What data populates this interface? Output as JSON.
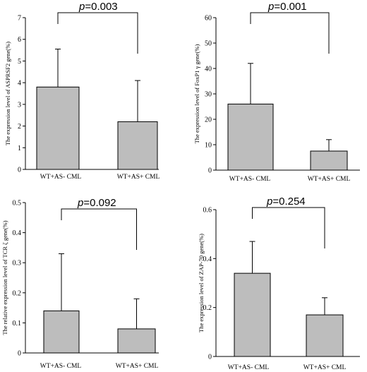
{
  "chart_data": [
    {
      "type": "bar",
      "ylabel": "The expression level of ASPRSF2 gene(%)",
      "ylim": [
        0,
        7
      ],
      "yticks": [
        0,
        1,
        2,
        3,
        4,
        5,
        6,
        7
      ],
      "categories": [
        "WT+AS- CML",
        "WT+AS+ CML"
      ],
      "values": [
        3.8,
        2.2
      ],
      "errors": [
        1.75,
        1.9
      ],
      "annotation": {
        "p_symbol": "p",
        "p_value": "=0.003"
      },
      "bar_color": "#bdbdbd"
    },
    {
      "type": "bar",
      "ylabel": "The expression level of FoxP1 γ gene(%)",
      "ylim": [
        0,
        60
      ],
      "yticks": [
        0,
        10,
        20,
        30,
        40,
        50,
        60
      ],
      "categories": [
        "WT+AS- CML",
        "WT+AS+ CML"
      ],
      "values": [
        26,
        7.5
      ],
      "errors": [
        16,
        4.5
      ],
      "annotation": {
        "p_symbol": "p",
        "p_value": "=0.001"
      },
      "bar_color": "#bdbdbd"
    },
    {
      "type": "bar",
      "ylabel": "The relative expression level of TCR ζ gene(%)",
      "ylim": [
        0,
        0.5
      ],
      "yticks": [
        0,
        0.1,
        0.2,
        0.3,
        0.4,
        0.5
      ],
      "ytick_labels": [
        "0",
        "0.1",
        "0.2",
        "0.3",
        "0.4",
        "0.5"
      ],
      "categories": [
        "WT+AS- CML",
        "WT+AS+ CML"
      ],
      "values": [
        0.14,
        0.08
      ],
      "errors": [
        0.19,
        0.1
      ],
      "annotation": {
        "p_symbol": "p",
        "p_value": "=0.092"
      },
      "bar_color": "#bdbdbd"
    },
    {
      "type": "bar",
      "ylabel": "The expression level of ZAP-70 gene(%)",
      "ylim": [
        0,
        0.6
      ],
      "yticks": [
        0,
        0.2,
        0.4,
        0.6
      ],
      "ytick_labels": [
        "0",
        "0.2",
        "0.4",
        "0.6"
      ],
      "categories": [
        "WT+AS- CML",
        "WT+AS+ CML"
      ],
      "values": [
        0.34,
        0.17
      ],
      "errors": [
        0.13,
        0.07
      ],
      "annotation": {
        "p_symbol": "p",
        "p_value": "=0.254"
      },
      "bar_color": "#bdbdbd"
    }
  ]
}
